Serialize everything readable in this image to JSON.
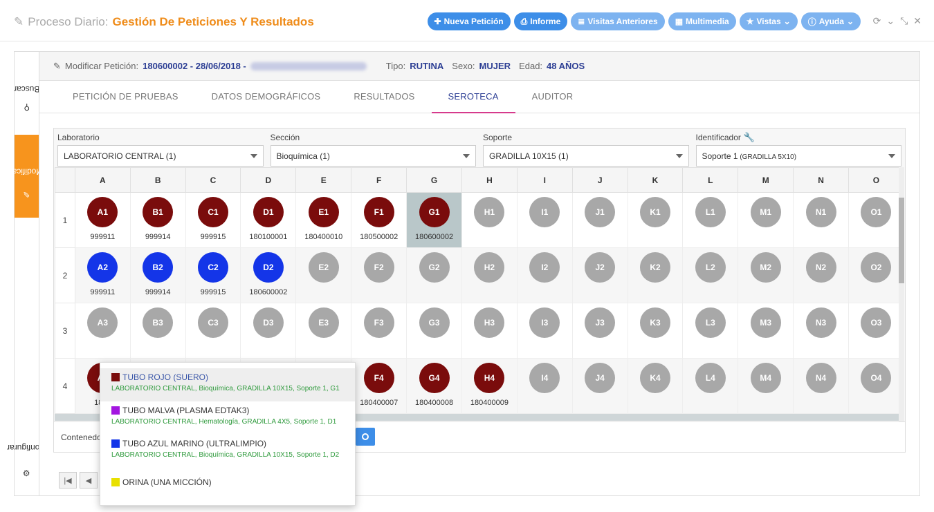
{
  "header": {
    "title_prefix": "Proceso Diario:",
    "title_main": "Gestión De Peticiones Y Resultados",
    "buttons": [
      {
        "label": "Nueva Petición",
        "icon": "plus-icon",
        "style": "primary"
      },
      {
        "label": "Informe",
        "icon": "print-icon",
        "style": "primary"
      },
      {
        "label": "Visitas Anteriores",
        "icon": "database-icon",
        "style": "light"
      },
      {
        "label": "Multimedia",
        "icon": "film-icon",
        "style": "light"
      },
      {
        "label": "Vistas",
        "icon": "star-icon",
        "style": "light"
      },
      {
        "label": "Ayuda",
        "icon": "info-icon",
        "style": "light"
      }
    ]
  },
  "rail": {
    "buscar": "Buscar",
    "modificar": "Modificar",
    "configurar": "Configurar"
  },
  "info": {
    "modify_label": "Modificar Petición:",
    "petition": "180600002 - 28/06/2018 -",
    "tipo_label": "Tipo:",
    "tipo": "RUTINA",
    "sexo_label": "Sexo:",
    "sexo": "MUJER",
    "edad_label": "Edad:",
    "edad": "48 AÑOS"
  },
  "tabs": [
    "PETICIÓN DE PRUEBAS",
    "DATOS DEMOGRÁFICOS",
    "RESULTADOS",
    "SEROTECA",
    "AUDITOR"
  ],
  "active_tab": "SEROTECA",
  "selectors": [
    {
      "label": "Laboratorio",
      "value": "LABORATORIO CENTRAL (1)"
    },
    {
      "label": "Sección",
      "value": "Bioquímica (1)"
    },
    {
      "label": "Soporte",
      "value": "GRADILLA 10X15 (1)"
    },
    {
      "label": "Identificador",
      "value": "Soporte 1",
      "value_small": "(GRADILLA 5X10)"
    }
  ],
  "columns": [
    "A",
    "B",
    "C",
    "D",
    "E",
    "F",
    "G",
    "H",
    "I",
    "J",
    "K",
    "L",
    "M",
    "N",
    "O"
  ],
  "rows": [
    "1",
    "2",
    "3",
    "4"
  ],
  "colors": {
    "red": "#7a0c0c",
    "blue": "#1435e8",
    "grey": "#a8a8a8",
    "accent": "#3d8ee8",
    "orange": "#f7941d"
  },
  "cells": {
    "1": {
      "A": [
        "red",
        "999911"
      ],
      "B": [
        "red",
        "999914"
      ],
      "C": [
        "red",
        "999915"
      ],
      "D": [
        "red",
        "180100001"
      ],
      "E": [
        "red",
        "180400010"
      ],
      "F": [
        "red",
        "180500002"
      ],
      "G": [
        "red",
        "180600002"
      ]
    },
    "2": {
      "A": [
        "blue",
        "999911"
      ],
      "B": [
        "blue",
        "999914"
      ],
      "C": [
        "blue",
        "999915"
      ],
      "D": [
        "blue",
        "180600002"
      ]
    },
    "3": {},
    "4": {
      "A": [
        "red",
        "1804"
      ],
      "F": [
        "red",
        "180400007"
      ],
      "G": [
        "red",
        "180400008"
      ],
      "H": [
        "red",
        "180400009"
      ]
    }
  },
  "selected_cell": "G1",
  "contenedores_label": "Contenedore",
  "popup": [
    {
      "color": "#7a0c0c",
      "title": "TUBO ROJO (SUERO)",
      "sub": "LABORATORIO CENTRAL, Bioquímica, GRADILLA 10X15, Soporte 1, G1",
      "highlight": true
    },
    {
      "color": "#a316e0",
      "title": "TUBO MALVA (PLASMA EDTAK3)",
      "sub": "LABORATORIO CENTRAL, Hematología, GRADILLA 4X5, Soporte 1, D1",
      "highlight": false
    },
    {
      "color": "#1435e8",
      "title": "TUBO AZUL MARINO (ULTRALIMPIO)",
      "sub": "LABORATORIO CENTRAL, Bioquímica, GRADILLA 10X15, Soporte 1, D2",
      "highlight": false
    },
    {
      "color": "#e8e000",
      "title": "ORINA (UNA MICCIÓN)",
      "sub": "",
      "highlight": false
    }
  ]
}
